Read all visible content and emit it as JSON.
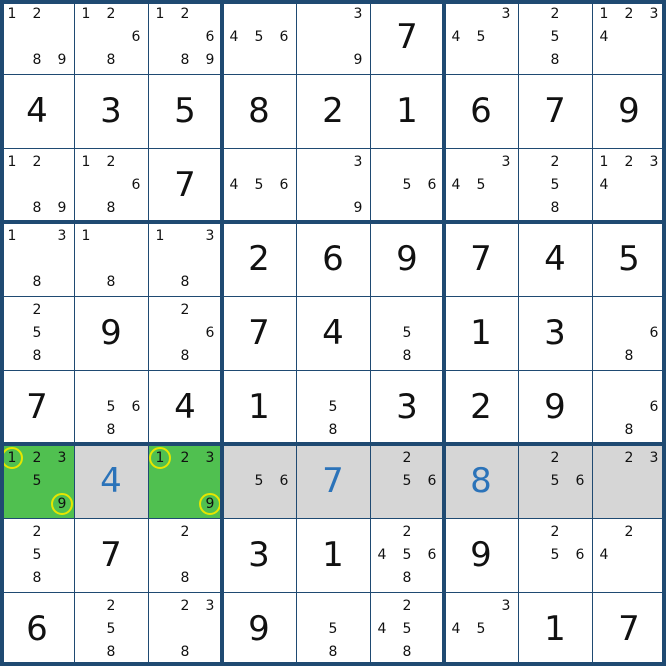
{
  "colors": {
    "grid_line": "#1f4a72",
    "row_highlight": "#d6d6d6",
    "cell_highlight": "#50c050",
    "entered_digit": "#2b73b9",
    "candidate_circle": "#e6e600"
  },
  "grid": [
    [
      {
        "c": [
          "1",
          "2",
          "8",
          "9"
        ]
      },
      {
        "c": [
          "1",
          "2",
          "6",
          "8"
        ]
      },
      {
        "c": [
          "1",
          "2",
          "6",
          "8",
          "9"
        ]
      },
      {
        "c": [
          "4",
          "5",
          "6"
        ]
      },
      {
        "c": [
          "3",
          "9"
        ]
      },
      {
        "v": "7"
      },
      {
        "c": [
          "3",
          "4",
          "5"
        ]
      },
      {
        "c": [
          "2",
          "5",
          "8"
        ]
      },
      {
        "c": [
          "1",
          "2",
          "3",
          "4"
        ]
      }
    ],
    [
      {
        "v": "4"
      },
      {
        "v": "3"
      },
      {
        "v": "5"
      },
      {
        "v": "8"
      },
      {
        "v": "2"
      },
      {
        "v": "1"
      },
      {
        "v": "6"
      },
      {
        "v": "7"
      },
      {
        "v": "9"
      }
    ],
    [
      {
        "c": [
          "1",
          "2",
          "8",
          "9"
        ]
      },
      {
        "c": [
          "1",
          "2",
          "6",
          "8"
        ]
      },
      {
        "v": "7"
      },
      {
        "c": [
          "4",
          "5",
          "6"
        ]
      },
      {
        "c": [
          "3",
          "9"
        ]
      },
      {
        "c": [
          "5",
          "6"
        ]
      },
      {
        "c": [
          "3",
          "4",
          "5"
        ]
      },
      {
        "c": [
          "2",
          "5",
          "8"
        ]
      },
      {
        "c": [
          "1",
          "2",
          "3",
          "4"
        ]
      }
    ],
    [
      {
        "c": [
          "1",
          "3",
          "8"
        ]
      },
      {
        "c": [
          "1",
          "8"
        ]
      },
      {
        "c": [
          "1",
          "3",
          "8"
        ]
      },
      {
        "v": "2"
      },
      {
        "v": "6"
      },
      {
        "v": "9"
      },
      {
        "v": "7"
      },
      {
        "v": "4"
      },
      {
        "v": "5"
      }
    ],
    [
      {
        "c": [
          "2",
          "5",
          "8"
        ]
      },
      {
        "v": "9"
      },
      {
        "c": [
          "2",
          "6",
          "8"
        ]
      },
      {
        "v": "7"
      },
      {
        "v": "4"
      },
      {
        "c": [
          "5",
          "8"
        ]
      },
      {
        "v": "1"
      },
      {
        "v": "3"
      },
      {
        "c": [
          "6",
          "8"
        ]
      }
    ],
    [
      {
        "v": "7"
      },
      {
        "c": [
          "5",
          "6",
          "8"
        ]
      },
      {
        "v": "4"
      },
      {
        "v": "1"
      },
      {
        "c": [
          "5",
          "8"
        ]
      },
      {
        "v": "3"
      },
      {
        "v": "2"
      },
      {
        "v": "9"
      },
      {
        "c": [
          "6",
          "8"
        ]
      }
    ],
    [
      {
        "c": [
          "1",
          "2",
          "3",
          "5",
          "9"
        ],
        "circled": [
          "1",
          "9"
        ],
        "highlight": "green"
      },
      {
        "v": "4",
        "blue": true
      },
      {
        "c": [
          "1",
          "2",
          "3",
          "9"
        ],
        "circled": [
          "1",
          "9"
        ],
        "highlight": "green"
      },
      {
        "c": [
          "5",
          "6"
        ]
      },
      {
        "v": "7",
        "blue": true
      },
      {
        "c": [
          "2",
          "5",
          "6"
        ]
      },
      {
        "v": "8",
        "blue": true
      },
      {
        "c": [
          "2",
          "5",
          "6"
        ]
      },
      {
        "c": [
          "2",
          "3"
        ]
      }
    ],
    [
      {
        "c": [
          "2",
          "5",
          "8"
        ]
      },
      {
        "v": "7"
      },
      {
        "c": [
          "2",
          "8"
        ]
      },
      {
        "v": "3"
      },
      {
        "v": "1"
      },
      {
        "c": [
          "2",
          "4",
          "5",
          "6",
          "8"
        ]
      },
      {
        "v": "9"
      },
      {
        "c": [
          "2",
          "5",
          "6"
        ]
      },
      {
        "c": [
          "2",
          "4"
        ]
      }
    ],
    [
      {
        "v": "6"
      },
      {
        "c": [
          "2",
          "5",
          "8"
        ]
      },
      {
        "c": [
          "2",
          "3",
          "8"
        ]
      },
      {
        "v": "9"
      },
      {
        "c": [
          "5",
          "8"
        ]
      },
      {
        "c": [
          "2",
          "4",
          "5",
          "8"
        ]
      },
      {
        "c": [
          "3",
          "4",
          "5"
        ]
      },
      {
        "v": "1"
      },
      {
        "v": "7"
      }
    ]
  ],
  "highlighted_row": 7
}
